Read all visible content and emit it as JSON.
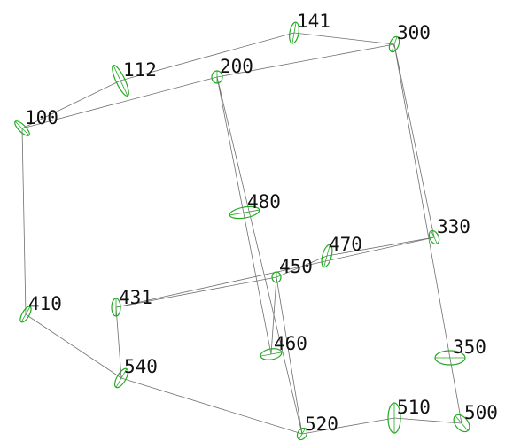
{
  "diagram": {
    "colors": {
      "edge": "#6f6f6f",
      "ellipse": "#22aa22",
      "label": "#111111",
      "background": "#ffffff"
    },
    "nodes": [
      {
        "id": "100",
        "label": "100"
      },
      {
        "id": "112",
        "label": "112"
      },
      {
        "id": "141",
        "label": "141"
      },
      {
        "id": "200",
        "label": "200"
      },
      {
        "id": "300",
        "label": "300"
      },
      {
        "id": "480",
        "label": "480"
      },
      {
        "id": "330",
        "label": "330"
      },
      {
        "id": "470",
        "label": "470"
      },
      {
        "id": "450",
        "label": "450"
      },
      {
        "id": "410",
        "label": "410"
      },
      {
        "id": "431",
        "label": "431"
      },
      {
        "id": "460",
        "label": "460"
      },
      {
        "id": "350",
        "label": "350"
      },
      {
        "id": "540",
        "label": "540"
      },
      {
        "id": "510",
        "label": "510"
      },
      {
        "id": "500",
        "label": "500"
      },
      {
        "id": "520",
        "label": "520"
      }
    ],
    "edges": [
      [
        "100",
        "112"
      ],
      [
        "112",
        "141"
      ],
      [
        "141",
        "300"
      ],
      [
        "100",
        "200"
      ],
      [
        "200",
        "300"
      ],
      [
        "100",
        "410"
      ],
      [
        "200",
        "460"
      ],
      [
        "200",
        "520"
      ],
      [
        "300",
        "330"
      ],
      [
        "300",
        "500"
      ],
      [
        "330",
        "470"
      ],
      [
        "330",
        "431"
      ],
      [
        "470",
        "450"
      ],
      [
        "450",
        "431"
      ],
      [
        "450",
        "520"
      ],
      [
        "450",
        "460"
      ],
      [
        "410",
        "540"
      ],
      [
        "431",
        "540"
      ],
      [
        "540",
        "520"
      ],
      [
        "520",
        "510"
      ],
      [
        "510",
        "500"
      ]
    ]
  }
}
